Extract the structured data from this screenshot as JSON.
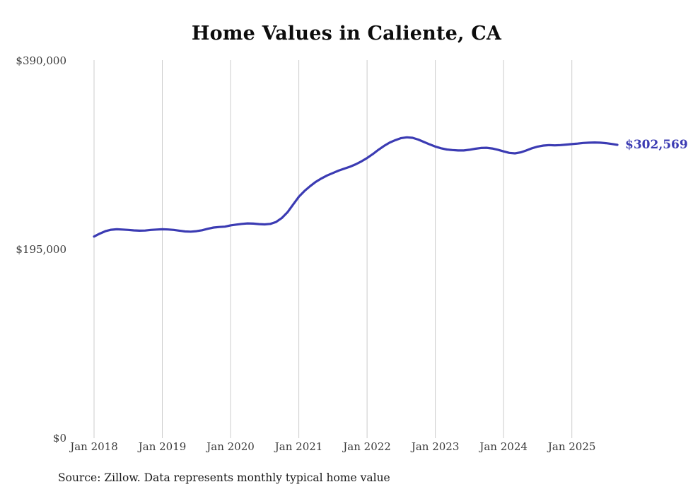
{
  "title": "Home Values in Caliente, CA",
  "source_note": "Source: Zillow. Data represents monthly typical home value",
  "end_label": "$302,569",
  "colors": {
    "line": "#3b3bb3",
    "end_label": "#3b3bb3",
    "grid": "#cccccc",
    "title": "#0d0d0d",
    "axis_text": "#3a3a3a",
    "background": "#ffffff"
  },
  "chart_data": {
    "type": "line",
    "title": "Home Values in Caliente, CA",
    "xlabel": "",
    "ylabel": "",
    "x_start": "2018-01",
    "x_end": "2025-09",
    "x_interval": "monthly",
    "x_tick_labels": [
      "Jan 2018",
      "Jan 2019",
      "Jan 2020",
      "Jan 2021",
      "Jan 2022",
      "Jan 2023",
      "Jan 2024",
      "Jan 2025"
    ],
    "y_ticks": [
      0,
      195000,
      390000
    ],
    "y_tick_labels": [
      "$0",
      "$195,000",
      "$390,000"
    ],
    "ylim": [
      0,
      390000
    ],
    "grid": "vertical-only",
    "legend": "none",
    "unit": "USD",
    "final_value": 302569,
    "series": [
      {
        "name": "Monthly typical home value",
        "values": [
          208000,
          211000,
          213500,
          215000,
          215500,
          215200,
          214800,
          214300,
          214000,
          214200,
          214800,
          215200,
          215500,
          215300,
          214800,
          214000,
          213200,
          213000,
          213500,
          214500,
          216000,
          217200,
          217800,
          218200,
          219500,
          220300,
          221000,
          221500,
          221300,
          220800,
          220500,
          221000,
          223000,
          227000,
          233000,
          241000,
          249000,
          255000,
          260000,
          264500,
          268000,
          271000,
          273500,
          276000,
          278000,
          280000,
          282500,
          285500,
          289000,
          293000,
          297500,
          301500,
          305000,
          307500,
          309500,
          310300,
          309800,
          308000,
          305500,
          303000,
          300800,
          299000,
          297800,
          297200,
          296800,
          296800,
          297500,
          298500,
          299300,
          299500,
          298800,
          297500,
          295800,
          294300,
          293800,
          294800,
          296800,
          299000,
          300800,
          301800,
          302300,
          302000,
          302300,
          302800,
          303300,
          303800,
          304500,
          304800,
          305000,
          304800,
          304300,
          303500,
          302569
        ]
      }
    ]
  }
}
